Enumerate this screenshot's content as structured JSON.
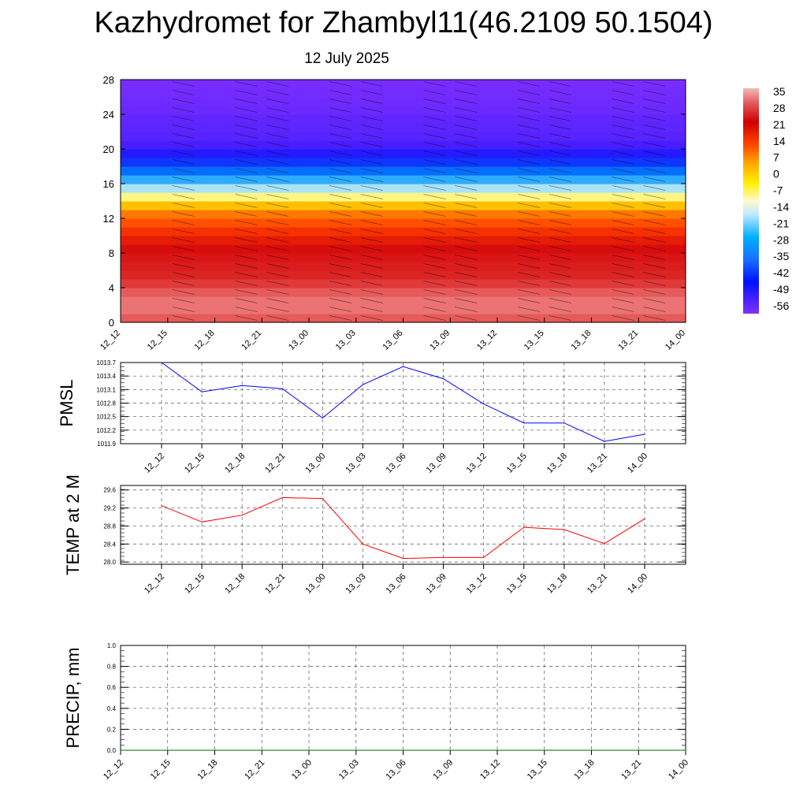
{
  "title": "Kazhydromet for Zhambyl11(46.2109 50.1504)",
  "subtitle": "12 July 2025",
  "chart_data": [
    {
      "type": "heatmap",
      "name": "vertical temperature cross-section",
      "x_categories": [
        "12_12",
        "12_15",
        "12_18",
        "12_21",
        "13_00",
        "13_03",
        "13_06",
        "13_09",
        "13_12",
        "13_15",
        "13_18",
        "13_21",
        "14_00"
      ],
      "y_ticks": [
        "0",
        "4",
        "8",
        "12",
        "16",
        "20",
        "24",
        "28"
      ],
      "ylim": [
        0,
        28
      ],
      "colorbar_labels": [
        "35",
        "28",
        "21",
        "14",
        "7",
        "0",
        "-7",
        "-14",
        "-21",
        "-28",
        "-35",
        "-42",
        "-49",
        "-56"
      ],
      "colorbar_range": [
        -60,
        38
      ],
      "levels_y": [
        0,
        1,
        2,
        3,
        4,
        5,
        6,
        7,
        8,
        9,
        10,
        11,
        12,
        13,
        14,
        15,
        16,
        17,
        18,
        19,
        20,
        21,
        22,
        23,
        24,
        25,
        26,
        27,
        28
      ],
      "values_by_level": [
        32,
        34,
        35,
        34,
        32,
        30,
        28,
        26,
        24,
        21,
        18,
        15,
        11,
        7,
        -5,
        -14,
        -23,
        -31,
        -38,
        -45,
        -52,
        -55,
        -56,
        -56,
        -57,
        -58,
        -58,
        -59,
        -59
      ]
    },
    {
      "type": "line",
      "ylabel": "PMSL",
      "categories": [
        "12_12",
        "12_15",
        "12_18",
        "12_21",
        "13_00",
        "13_03",
        "13_06",
        "13_09",
        "13_12",
        "13_15",
        "13_18",
        "13_21",
        "14_00"
      ],
      "y_ticks": [
        "1011.9",
        "1012.2",
        "1012.5",
        "1012.8",
        "1013.1",
        "1013.4",
        "1013.7"
      ],
      "ylim": [
        1011.9,
        1013.7
      ],
      "series": [
        {
          "values": [
            1013.7,
            1013.05,
            1013.19,
            1013.12,
            1012.47,
            1013.21,
            1013.61,
            1013.34,
            1012.78,
            1012.36,
            1012.36,
            1011.95,
            1012.11
          ],
          "color": "#0000ff"
        }
      ],
      "grid": true
    },
    {
      "type": "line",
      "ylabel": "TEMP at 2 M",
      "categories": [
        "12_12",
        "12_15",
        "12_18",
        "12_21",
        "13_00",
        "13_03",
        "13_06",
        "13_09",
        "13_12",
        "13_15",
        "13_18",
        "13_21",
        "14_00"
      ],
      "y_ticks": [
        "28.0",
        "28.4",
        "28.8",
        "29.2",
        "29.6"
      ],
      "ylim": [
        27.95,
        29.7
      ],
      "series": [
        {
          "values": [
            29.25,
            28.89,
            29.04,
            29.43,
            29.41,
            28.4,
            28.08,
            28.1,
            28.1,
            28.77,
            28.72,
            28.41,
            28.96
          ],
          "color": "#ff0000"
        }
      ],
      "grid": true
    },
    {
      "type": "line",
      "ylabel": "PRECIP, mm",
      "categories": [
        "12_12",
        "12_15",
        "12_18",
        "12_21",
        "13_00",
        "13_03",
        "13_06",
        "13_09",
        "13_12",
        "13_15",
        "13_18",
        "13_21",
        "14_00"
      ],
      "y_ticks": [
        "0.0",
        "0.2",
        "0.4",
        "0.6",
        "0.8",
        "1.0"
      ],
      "ylim": [
        0,
        1.0
      ],
      "series": [
        {
          "values": [
            0,
            0,
            0,
            0,
            0,
            0,
            0,
            0,
            0,
            0,
            0,
            0,
            0
          ],
          "color": "#006400"
        }
      ],
      "grid": true
    }
  ]
}
